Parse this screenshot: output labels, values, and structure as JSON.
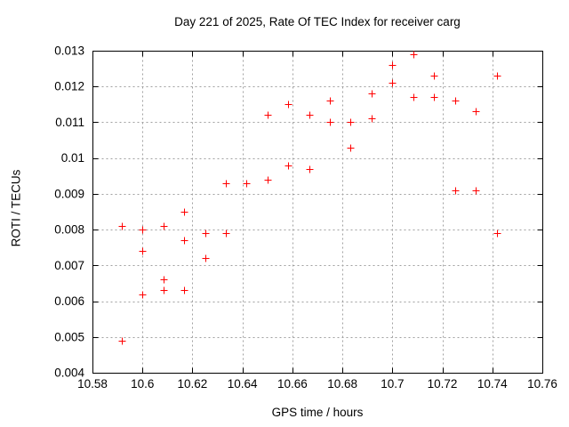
{
  "chart_data": {
    "type": "scatter",
    "title": "Day 221 of 2025, Rate Of TEC Index for receiver carg",
    "xlabel": "GPS time / hours",
    "ylabel": "ROTI / TECUs",
    "xlim": [
      10.58,
      10.76
    ],
    "ylim": [
      0.004,
      0.013
    ],
    "x_ticks": [
      "10.58",
      "10.6",
      "10.62",
      "10.64",
      "10.66",
      "10.68",
      "10.7",
      "10.72",
      "10.74",
      "10.76"
    ],
    "y_ticks": [
      "0.004",
      "0.005",
      "0.006",
      "0.007",
      "0.008",
      "0.009",
      "0.01",
      "0.011",
      "0.012",
      "0.013"
    ],
    "grid": true,
    "legend": "none",
    "marker": "plus",
    "colors": {
      "marker": "#ff0000",
      "grid": "#a0a0a0",
      "axis": "#000000",
      "background": "#ffffff"
    },
    "points": [
      [
        10.5917,
        0.0049
      ],
      [
        10.5917,
        0.0081
      ],
      [
        10.6,
        0.0062
      ],
      [
        10.6,
        0.0074
      ],
      [
        10.6,
        0.008
      ],
      [
        10.6083,
        0.0063
      ],
      [
        10.6083,
        0.0066
      ],
      [
        10.6083,
        0.0081
      ],
      [
        10.6167,
        0.0063
      ],
      [
        10.6167,
        0.0077
      ],
      [
        10.6167,
        0.0085
      ],
      [
        10.625,
        0.0072
      ],
      [
        10.625,
        0.0079
      ],
      [
        10.6333,
        0.0079
      ],
      [
        10.6333,
        0.0093
      ],
      [
        10.6417,
        0.0093
      ],
      [
        10.65,
        0.0094
      ],
      [
        10.65,
        0.0112
      ],
      [
        10.6583,
        0.0098
      ],
      [
        10.6583,
        0.0115
      ],
      [
        10.6667,
        0.0097
      ],
      [
        10.6667,
        0.0112
      ],
      [
        10.675,
        0.011
      ],
      [
        10.675,
        0.0116
      ],
      [
        10.6833,
        0.0103
      ],
      [
        10.6833,
        0.011
      ],
      [
        10.6917,
        0.0111
      ],
      [
        10.6917,
        0.0118
      ],
      [
        10.7,
        0.0121
      ],
      [
        10.7,
        0.0126
      ],
      [
        10.7083,
        0.0117
      ],
      [
        10.7083,
        0.0129
      ],
      [
        10.7167,
        0.0117
      ],
      [
        10.7167,
        0.0123
      ],
      [
        10.725,
        0.0091
      ],
      [
        10.725,
        0.0116
      ],
      [
        10.7333,
        0.0091
      ],
      [
        10.7333,
        0.0113
      ],
      [
        10.7417,
        0.0079
      ],
      [
        10.7417,
        0.0123
      ]
    ]
  }
}
